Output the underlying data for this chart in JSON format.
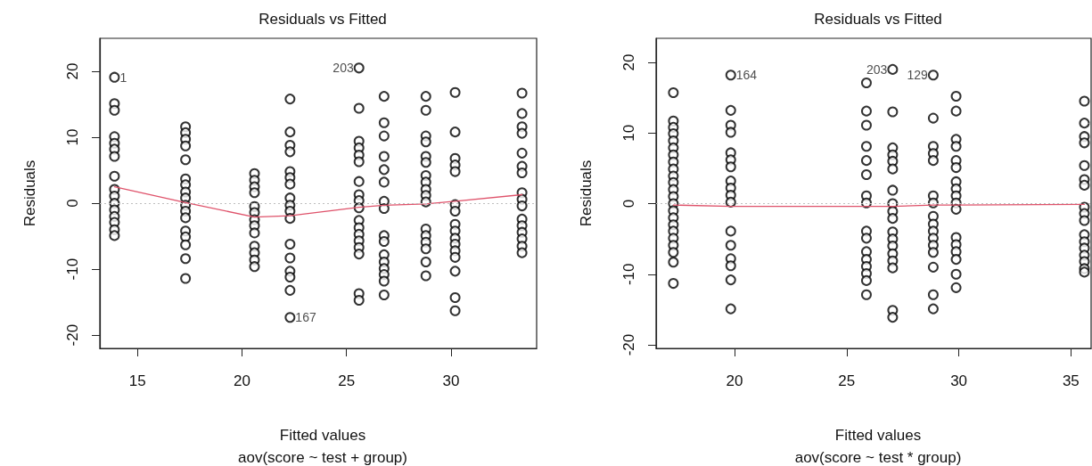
{
  "chart_data": [
    {
      "type": "scatter",
      "title": "Residuals vs Fitted",
      "subtitle": "aov(score ~ test + group)",
      "xlabel": "Fitted values",
      "ylabel": "Residuals",
      "xlim": [
        13.2,
        34.1
      ],
      "xticks": [
        15,
        20,
        25,
        30
      ],
      "ylim": [
        -22,
        25
      ],
      "yticks": [
        -20,
        -10,
        0,
        10,
        20
      ],
      "ref_lines": [
        {
          "axis": "y",
          "value": 0,
          "color": "#bebebe",
          "line_style": "dotted"
        }
      ],
      "annotations": [
        {
          "text": "1",
          "x": 13.9,
          "y": 19.1
        },
        {
          "text": "203",
          "x": 25.6,
          "y": 20.5
        },
        {
          "text": "167",
          "x": 22.3,
          "y": -17.3
        }
      ],
      "series": [
        {
          "marker": "circle",
          "color": "#000000",
          "x": [
            13.9,
            13.9,
            13.9,
            13.9,
            13.9,
            13.9,
            13.9,
            13.9,
            13.9,
            13.9,
            13.9,
            13.9,
            13.9,
            13.9,
            13.9,
            13.9,
            17.3,
            17.3,
            17.3,
            17.3,
            17.3,
            17.3,
            17.3,
            17.3,
            17.3,
            17.3,
            17.3,
            17.3,
            17.3,
            17.3,
            17.3,
            17.3,
            17.3,
            20.6,
            20.6,
            20.6,
            20.6,
            20.6,
            20.6,
            20.6,
            20.6,
            20.6,
            20.6,
            20.6,
            20.6,
            20.6,
            22.3,
            22.3,
            22.3,
            22.3,
            22.3,
            22.3,
            22.3,
            22.3,
            22.3,
            22.3,
            22.3,
            22.3,
            22.3,
            22.3,
            22.3,
            22.3,
            22.3,
            25.6,
            25.6,
            25.6,
            25.6,
            25.6,
            25.6,
            25.6,
            25.6,
            25.6,
            25.6,
            25.6,
            25.6,
            25.6,
            25.6,
            25.6,
            25.6,
            25.6,
            25.6,
            26.8,
            26.8,
            26.8,
            26.8,
            26.8,
            26.8,
            26.8,
            26.8,
            26.8,
            26.8,
            26.8,
            26.8,
            26.8,
            26.8,
            26.8,
            26.8,
            28.8,
            28.8,
            28.8,
            28.8,
            28.8,
            28.8,
            28.8,
            28.8,
            28.8,
            28.8,
            28.8,
            28.8,
            28.8,
            28.8,
            28.8,
            28.8,
            28.8,
            30.2,
            30.2,
            30.2,
            30.2,
            30.2,
            30.2,
            30.2,
            30.2,
            30.2,
            30.2,
            30.2,
            30.2,
            30.2,
            30.2,
            30.2,
            30.2,
            33.4,
            33.4,
            33.4,
            33.4,
            33.4,
            33.4,
            33.4,
            33.4,
            33.4,
            33.4,
            33.4,
            33.4,
            33.4,
            33.4,
            33.4,
            33.4
          ],
          "values": [
            19.1,
            15.1,
            14.1,
            10.1,
            9.1,
            8.2,
            7.1,
            4.1,
            2.1,
            1.1,
            0,
            -1,
            -2,
            -2.9,
            -4,
            -4.9,
            11.6,
            10.7,
            9.7,
            8.7,
            6.6,
            3.7,
            2.8,
            1.7,
            0.8,
            -0.3,
            -1.2,
            -2.2,
            -4.2,
            -5.1,
            -6.3,
            -8.4,
            -11.4,
            4.5,
            3.5,
            2.5,
            1.6,
            -0.5,
            -1.4,
            -2.5,
            -3.4,
            -4.5,
            -6.5,
            -7.5,
            -8.6,
            -9.6,
            15.8,
            10.8,
            8.8,
            7.8,
            4.8,
            3.9,
            2.9,
            0.8,
            -0.3,
            -1.2,
            -2.3,
            -6.2,
            -8.3,
            -10.3,
            -11.2,
            -13.2,
            -17.3,
            20.5,
            14.4,
            9.4,
            8.4,
            7.3,
            6.3,
            3.3,
            1.3,
            0.4,
            -0.7,
            -2.6,
            -3.7,
            -4.7,
            -5.7,
            -6.7,
            -7.7,
            -13.7,
            -14.7,
            16.2,
            12.2,
            10.2,
            7.1,
            5.1,
            3.2,
            0.3,
            -0.8,
            -4.9,
            -5.8,
            -7.8,
            -8.9,
            -9.9,
            -10.8,
            -11.8,
            -13.9,
            16.2,
            14.1,
            10.2,
            9.3,
            7.1,
            6.2,
            4.2,
            3.2,
            2.1,
            1.2,
            0.2,
            -3.9,
            -4.9,
            -5.9,
            -6.9,
            -8.9,
            -11.0,
            16.8,
            10.8,
            6.8,
            5.8,
            4.8,
            -0.2,
            -1.2,
            -3.2,
            -4.2,
            -5.3,
            -6.2,
            -7.2,
            -8.2,
            -10.3,
            -14.3,
            -16.3,
            16.7,
            13.6,
            11.6,
            10.6,
            7.6,
            5.6,
            4.6,
            1.6,
            0.6,
            -0.4,
            -2.4,
            -3.4,
            -4.4,
            -5.4,
            -6.5,
            -7.5
          ]
        },
        {
          "type": "line",
          "color": "#df536b",
          "x": [
            13.9,
            17.3,
            20.6,
            22.3,
            25.6,
            26.8,
            28.8,
            30.2,
            33.4
          ],
          "values": [
            2.5,
            0.1,
            -2.1,
            -1.9,
            -0.6,
            -0.3,
            -0.1,
            0.3,
            1.3
          ]
        }
      ]
    },
    {
      "type": "scatter",
      "title": "Residuals vs Fitted",
      "subtitle": "aov(score ~ test * group)",
      "xlabel": "Fitted values",
      "ylabel": "Residuals",
      "xlim": [
        16.5,
        35.9
      ],
      "xticks": [
        20,
        25,
        30,
        35
      ],
      "ylim": [
        -20.5,
        23.4
      ],
      "yticks": [
        -20,
        -10,
        0,
        10,
        20
      ],
      "ref_lines": [
        {
          "axis": "y",
          "value": 0,
          "color": "#bebebe",
          "line_style": "dotted"
        }
      ],
      "annotations": [
        {
          "text": "164",
          "x": 19.83,
          "y": 18.2
        },
        {
          "text": "203",
          "x": 27.05,
          "y": 19.0
        },
        {
          "text": "129",
          "x": 28.86,
          "y": 18.2
        }
      ],
      "series": [
        {
          "marker": "circle",
          "color": "#000000",
          "x": [
            17.27,
            17.27,
            17.27,
            17.27,
            17.27,
            17.27,
            17.27,
            17.27,
            17.27,
            17.27,
            17.27,
            17.27,
            17.27,
            17.27,
            17.27,
            17.27,
            17.27,
            17.27,
            17.27,
            17.27,
            17.27,
            17.27,
            17.27,
            19.83,
            19.83,
            19.83,
            19.83,
            19.83,
            19.83,
            19.83,
            19.83,
            19.83,
            19.83,
            19.83,
            19.83,
            19.83,
            19.83,
            19.83,
            19.83,
            19.83,
            25.88,
            25.88,
            25.88,
            25.88,
            25.88,
            25.88,
            25.88,
            25.88,
            25.88,
            25.88,
            25.88,
            25.88,
            25.88,
            25.88,
            25.88,
            25.88,
            27.05,
            27.05,
            27.05,
            27.05,
            27.05,
            27.05,
            27.05,
            27.05,
            27.05,
            27.05,
            27.05,
            27.05,
            27.05,
            27.05,
            27.05,
            27.05,
            27.05,
            27.05,
            28.86,
            28.86,
            28.86,
            28.86,
            28.86,
            28.86,
            28.86,
            28.86,
            28.86,
            28.86,
            28.86,
            28.86,
            28.86,
            28.86,
            28.86,
            28.86,
            29.88,
            29.88,
            29.88,
            29.88,
            29.88,
            29.88,
            29.88,
            29.88,
            29.88,
            29.88,
            29.88,
            29.88,
            29.88,
            29.88,
            29.88,
            29.88,
            29.88,
            35.6,
            35.6,
            35.6,
            35.6,
            35.6,
            35.6,
            35.6,
            35.6,
            35.6,
            35.6,
            35.6,
            35.6,
            35.6,
            35.6,
            35.6,
            35.6,
            35.6
          ],
          "values": [
            15.7,
            11.7,
            10.8,
            9.9,
            8.9,
            7.9,
            6.9,
            5.9,
            4.9,
            3.9,
            3.0,
            2.0,
            1.0,
            0,
            -1.0,
            -2.0,
            -3.0,
            -3.9,
            -4.9,
            -5.9,
            -6.9,
            -8.3,
            -11.3,
            18.2,
            13.2,
            11.1,
            10.1,
            7.2,
            6.2,
            5.2,
            3.2,
            2.2,
            1.2,
            0.2,
            -3.9,
            -5.9,
            -7.8,
            -8.8,
            -10.8,
            -14.9,
            17.1,
            13.1,
            11.1,
            8.1,
            6.1,
            4.1,
            1.1,
            0.1,
            -3.9,
            -4.9,
            -6.8,
            -7.9,
            -8.9,
            -9.9,
            -10.9,
            -12.9,
            19.0,
            13.0,
            7.9,
            6.9,
            6.0,
            4.9,
            1.9,
            0,
            -1.1,
            -2.1,
            -4.0,
            -5.0,
            -6.0,
            -7.1,
            -8.1,
            -9.1,
            -15.1,
            -16.1,
            18.2,
            12.1,
            8.1,
            7.1,
            6.1,
            1.1,
            0.1,
            -1.8,
            -2.9,
            -3.9,
            -4.9,
            -5.9,
            -6.9,
            -9.0,
            -12.9,
            -14.9,
            15.2,
            13.1,
            9.1,
            8.1,
            6.1,
            5.1,
            3.1,
            2.1,
            1.1,
            0.1,
            -0.8,
            -4.8,
            -5.8,
            -6.8,
            -7.9,
            -10.0,
            -11.9,
            14.5,
            11.4,
            9.5,
            8.6,
            5.4,
            3.4,
            2.6,
            -0.5,
            -1.4,
            -2.4,
            -4.4,
            -5.4,
            -6.3,
            -7.3,
            -8.2,
            -9.2,
            -9.7
          ]
        },
        {
          "type": "line",
          "color": "#df536b",
          "x": [
            17.27,
            19.83,
            25.88,
            27.05,
            28.86,
            29.88,
            35.6
          ],
          "values": [
            -0.2,
            -0.4,
            -0.4,
            -0.4,
            -0.2,
            -0.2,
            -0.1
          ]
        }
      ]
    }
  ]
}
